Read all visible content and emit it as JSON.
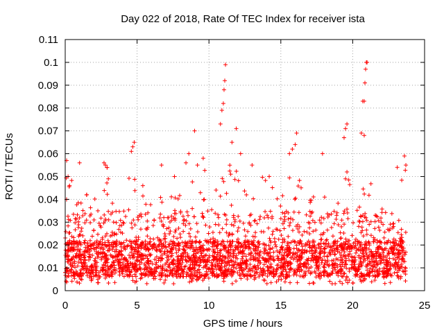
{
  "chart_data": {
    "type": "scatter",
    "title": "Day 022 of 2018, Rate Of TEC Index for receiver ista",
    "xlabel": "GPS time / hours",
    "ylabel": "ROTI / TECUs",
    "xlim": [
      0,
      25
    ],
    "ylim": [
      0,
      0.11
    ],
    "xticks": [
      0,
      5,
      10,
      15,
      20,
      25
    ],
    "xtick_labels": [
      "0",
      "5",
      "10",
      "15",
      "20",
      "25"
    ],
    "yticks": [
      0,
      0.01,
      0.02,
      0.03,
      0.04,
      0.05,
      0.06,
      0.07,
      0.08,
      0.09,
      0.1,
      0.11
    ],
    "ytick_labels": [
      "0",
      "0.01",
      "0.02",
      "0.03",
      "0.04",
      "0.05",
      "0.06",
      "0.07",
      "0.08",
      "0.09",
      "0.1",
      "0.11"
    ],
    "grid": true,
    "marker": "+",
    "color": "#ff0000",
    "x_range_of_data": [
      0,
      23.7
    ],
    "density_note": "dense band of points",
    "series": [
      {
        "name": "ROTI",
        "band": {
          "typical_low": 0.006,
          "typical_high": 0.022,
          "frequent_upper": 0.035
        },
        "outliers": [
          {
            "x": 0.1,
            "y": 0.057
          },
          {
            "x": 0.2,
            "y": 0.05
          },
          {
            "x": 0.3,
            "y": 0.046
          },
          {
            "x": 1.0,
            "y": 0.056
          },
          {
            "x": 1.5,
            "y": 0.042
          },
          {
            "x": 2.7,
            "y": 0.056
          },
          {
            "x": 2.8,
            "y": 0.055
          },
          {
            "x": 3.0,
            "y": 0.049
          },
          {
            "x": 4.6,
            "y": 0.061
          },
          {
            "x": 4.7,
            "y": 0.063
          },
          {
            "x": 4.8,
            "y": 0.065
          },
          {
            "x": 5.4,
            "y": 0.046
          },
          {
            "x": 6.7,
            "y": 0.055
          },
          {
            "x": 7.6,
            "y": 0.05
          },
          {
            "x": 8.4,
            "y": 0.056
          },
          {
            "x": 8.6,
            "y": 0.06
          },
          {
            "x": 9.0,
            "y": 0.07
          },
          {
            "x": 9.2,
            "y": 0.055
          },
          {
            "x": 9.6,
            "y": 0.058
          },
          {
            "x": 10.8,
            "y": 0.073
          },
          {
            "x": 10.9,
            "y": 0.079
          },
          {
            "x": 11.0,
            "y": 0.082
          },
          {
            "x": 11.05,
            "y": 0.088
          },
          {
            "x": 11.1,
            "y": 0.092
          },
          {
            "x": 11.15,
            "y": 0.099
          },
          {
            "x": 11.6,
            "y": 0.065
          },
          {
            "x": 11.9,
            "y": 0.071
          },
          {
            "x": 12.2,
            "y": 0.06
          },
          {
            "x": 13.0,
            "y": 0.055
          },
          {
            "x": 15.6,
            "y": 0.06
          },
          {
            "x": 15.8,
            "y": 0.062
          },
          {
            "x": 16.0,
            "y": 0.064
          },
          {
            "x": 16.1,
            "y": 0.069
          },
          {
            "x": 17.9,
            "y": 0.06
          },
          {
            "x": 19.4,
            "y": 0.067
          },
          {
            "x": 19.5,
            "y": 0.071
          },
          {
            "x": 19.6,
            "y": 0.073
          },
          {
            "x": 19.6,
            "y": 0.052
          },
          {
            "x": 20.6,
            "y": 0.069
          },
          {
            "x": 20.7,
            "y": 0.083
          },
          {
            "x": 20.8,
            "y": 0.083
          },
          {
            "x": 20.85,
            "y": 0.091
          },
          {
            "x": 20.9,
            "y": 0.097
          },
          {
            "x": 20.95,
            "y": 0.1
          },
          {
            "x": 21.0,
            "y": 0.1
          },
          {
            "x": 20.8,
            "y": 0.068
          },
          {
            "x": 23.1,
            "y": 0.054
          },
          {
            "x": 23.6,
            "y": 0.059
          },
          {
            "x": 23.7,
            "y": 0.055
          }
        ]
      }
    ]
  }
}
